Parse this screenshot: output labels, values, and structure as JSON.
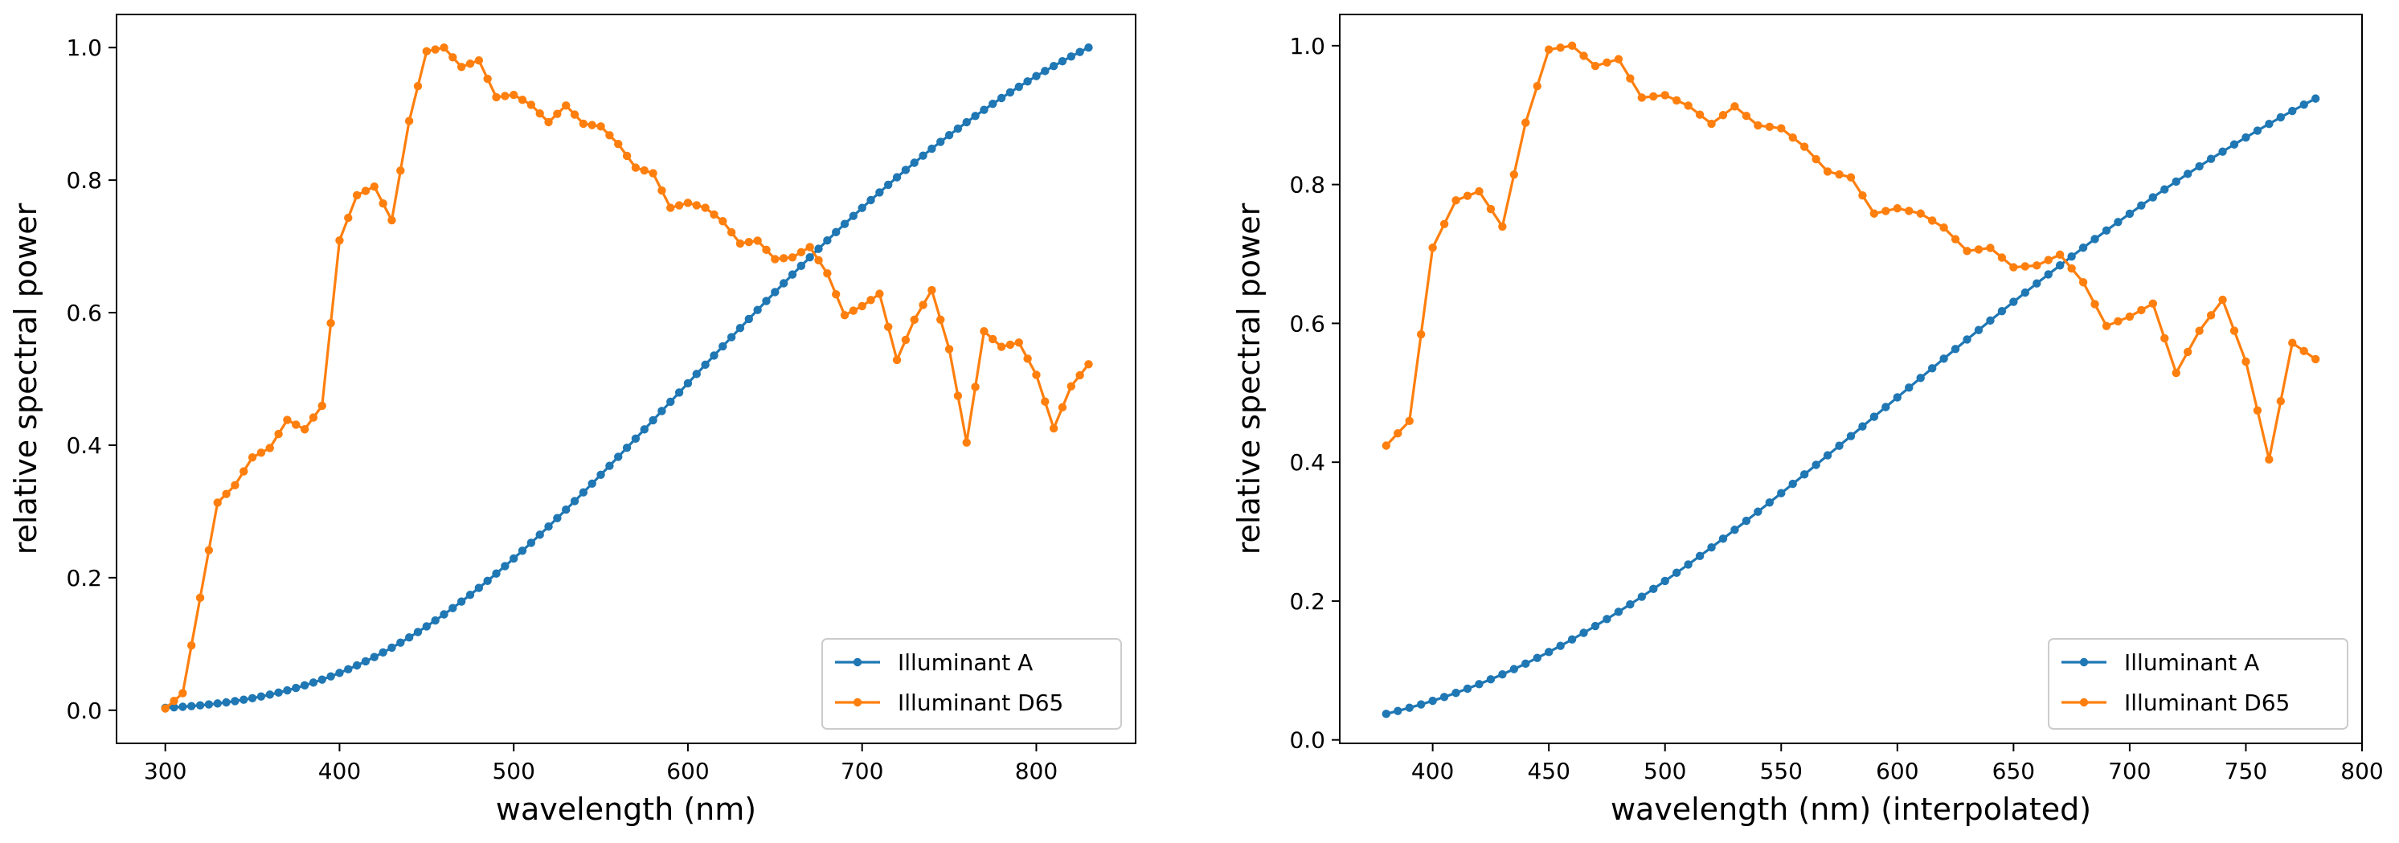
{
  "chart_data": [
    {
      "type": "line",
      "title": "",
      "xlabel": "wavelength (nm)",
      "ylabel": "relative spectral power",
      "xlim": [
        272,
        857
      ],
      "ylim": [
        -0.05,
        1.05
      ],
      "xticks": [
        300,
        400,
        500,
        600,
        700,
        800
      ],
      "yticks": [
        0.0,
        0.2,
        0.4,
        0.6,
        0.8,
        1.0
      ],
      "grid": false,
      "legend_position": "lower right",
      "series": [
        {
          "name": "Illuminant A",
          "color": "#1f77b4",
          "kind": "planckian",
          "x_start": 300,
          "x_end": 830,
          "x_step": 5,
          "temperature_K": 2856,
          "normalize_at_nm": 830
        },
        {
          "name": "Illuminant D65",
          "color": "#ff7f0e",
          "x": [
            300,
            305,
            310,
            315,
            320,
            325,
            330,
            335,
            340,
            345,
            350,
            355,
            360,
            365,
            370,
            375,
            380,
            385,
            390,
            395,
            400,
            405,
            410,
            415,
            420,
            425,
            430,
            435,
            440,
            445,
            450,
            455,
            460,
            465,
            470,
            475,
            480,
            485,
            490,
            495,
            500,
            505,
            510,
            515,
            520,
            525,
            530,
            535,
            540,
            545,
            550,
            555,
            560,
            565,
            570,
            575,
            580,
            585,
            590,
            595,
            600,
            605,
            610,
            615,
            620,
            625,
            630,
            635,
            640,
            645,
            650,
            655,
            660,
            665,
            670,
            675,
            680,
            685,
            690,
            695,
            700,
            705,
            710,
            715,
            720,
            725,
            730,
            735,
            740,
            745,
            750,
            755,
            760,
            765,
            770,
            775,
            780,
            785,
            790,
            795,
            800,
            805,
            810,
            815,
            820,
            825,
            830
          ],
          "y": [
            0.0026,
            0.0141,
            0.0257,
            0.0977,
            0.1697,
            0.2415,
            0.3133,
            0.3264,
            0.3395,
            0.3605,
            0.3815,
            0.3886,
            0.3958,
            0.4169,
            0.4381,
            0.431,
            0.4239,
            0.4417,
            0.4594,
            0.5842,
            0.709,
            0.7431,
            0.7772,
            0.7837,
            0.7902,
            0.7648,
            0.7394,
            0.8143,
            0.8892,
            0.9418,
            0.9944,
            0.9972,
            1.0,
            0.9854,
            0.9708,
            0.9757,
            0.9806,
            0.9529,
            0.9252,
            0.927,
            0.9287,
            0.9212,
            0.9137,
            0.9006,
            0.8875,
            0.9,
            0.9126,
            0.8989,
            0.8852,
            0.8831,
            0.881,
            0.8677,
            0.8545,
            0.8366,
            0.8188,
            0.8146,
            0.8104,
            0.7843,
            0.7582,
            0.7619,
            0.7657,
            0.762,
            0.7582,
            0.7481,
            0.738,
            0.7212,
            0.7043,
            0.7065,
            0.7087,
            0.6948,
            0.6808,
            0.6821,
            0.6834,
            0.6912,
            0.699,
            0.6791,
            0.6592,
            0.6277,
            0.5962,
            0.603,
            0.6098,
            0.6191,
            0.6284,
            0.5785,
            0.5286,
            0.5589,
            0.5893,
            0.6116,
            0.6339,
            0.5894,
            0.5449,
            0.4745,
            0.404,
            0.4879,
            0.5719,
            0.5601,
            0.5484,
            0.5516,
            0.5548,
            0.5305,
            0.5062,
            0.4658,
            0.4254,
            0.4571,
            0.4889,
            0.5055,
            0.5221
          ]
        }
      ]
    },
    {
      "type": "line",
      "title": "",
      "xlabel": "wavelength (nm) (interpolated)",
      "ylabel": "relative spectral power",
      "xlim": [
        360,
        800
      ],
      "ylim": [
        -0.005,
        1.045
      ],
      "xticks": [
        400,
        450,
        500,
        550,
        600,
        650,
        700,
        750,
        800
      ],
      "yticks": [
        0.0,
        0.2,
        0.4,
        0.6,
        0.8,
        1.0
      ],
      "grid": false,
      "legend_position": "lower right",
      "series": [
        {
          "name": "Illuminant A",
          "color": "#1f77b4",
          "kind": "planckian",
          "x_start": 380,
          "x_end": 780,
          "x_step": 5,
          "temperature_K": 2856,
          "normalize_at_nm": 830
        },
        {
          "name": "Illuminant D65",
          "color": "#ff7f0e",
          "kind": "subset_of_previous",
          "x_start": 380,
          "x_end": 780
        }
      ]
    }
  ],
  "legend_labels": [
    "Illuminant A",
    "Illuminant D65"
  ]
}
